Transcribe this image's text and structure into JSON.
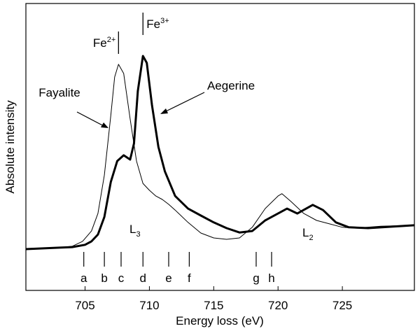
{
  "chart_data": {
    "type": "line",
    "x_label": "Energy loss (eV)",
    "y_label": "Absolute intensity",
    "xlim": [
      700.4,
      730.6
    ],
    "ylim": [
      0,
      100
    ],
    "xticks": [
      705,
      710,
      715,
      720,
      725
    ],
    "series": [
      {
        "name": "Fayalite",
        "color": "#000000",
        "linewidth": 1,
        "x": [
          700.4,
          703,
          704,
          704.8,
          705.5,
          706,
          706.5,
          707,
          707.3,
          707.6,
          708,
          708.5,
          709,
          709.5,
          710,
          710.5,
          711,
          711.5,
          712,
          713,
          714,
          715,
          716,
          717,
          718,
          719,
          720,
          720.3,
          721,
          722,
          723,
          724,
          725,
          726,
          728,
          730.6
        ],
        "values": [
          14.6,
          14.9,
          15.4,
          17.1,
          20.7,
          26.8,
          40.2,
          61.0,
          74.4,
          78.8,
          75.6,
          59.8,
          45.1,
          37.3,
          34.9,
          32.9,
          31.7,
          30.0,
          28.0,
          23.7,
          20.0,
          18.3,
          17.8,
          18.3,
          22.0,
          28.5,
          32.9,
          33.7,
          31.0,
          26.8,
          24.4,
          23.2,
          22.0,
          21.7,
          22.4,
          22.7
        ]
      },
      {
        "name": "Aegerine",
        "color": "#000000",
        "linewidth": 3,
        "x": [
          700.4,
          703,
          704,
          705,
          705.5,
          706,
          706.5,
          707,
          707.5,
          708,
          708.5,
          708.8,
          709.1,
          709.5,
          709.8,
          710.2,
          710.7,
          711.2,
          712,
          713,
          714,
          715,
          716,
          717,
          718,
          719,
          720,
          720.7,
          721.5,
          722.7,
          723.5,
          724.5,
          725.5,
          727,
          730.6
        ],
        "values": [
          14.4,
          14.9,
          15.1,
          15.9,
          17.1,
          19.5,
          25.6,
          37.8,
          45.1,
          47.1,
          45.6,
          51.2,
          69.5,
          81.7,
          79.3,
          64.6,
          50.0,
          41.5,
          32.9,
          28.5,
          26.1,
          23.7,
          21.7,
          20.2,
          20.7,
          24.4,
          26.8,
          28.5,
          26.8,
          29.8,
          28.0,
          23.7,
          22.0,
          21.7,
          22.7
        ]
      }
    ],
    "peak_labels": [
      {
        "text": "Fe",
        "superscript": "2+",
        "x": 707.6
      },
      {
        "text": "Fe",
        "superscript": "3+",
        "x": 709.5
      }
    ],
    "edge_labels": [
      {
        "text": "L",
        "subscript": "3"
      },
      {
        "text": "L",
        "subscript": "2"
      }
    ],
    "feature_markers": [
      {
        "label": "a",
        "x": 704.9
      },
      {
        "label": "b",
        "x": 706.5
      },
      {
        "label": "c",
        "x": 707.8
      },
      {
        "label": "d",
        "x": 709.5
      },
      {
        "label": "e",
        "x": 711.5
      },
      {
        "label": "f",
        "x": 713.1
      },
      {
        "label": "g",
        "x": 718.3
      },
      {
        "label": "h",
        "x": 719.5
      }
    ]
  }
}
